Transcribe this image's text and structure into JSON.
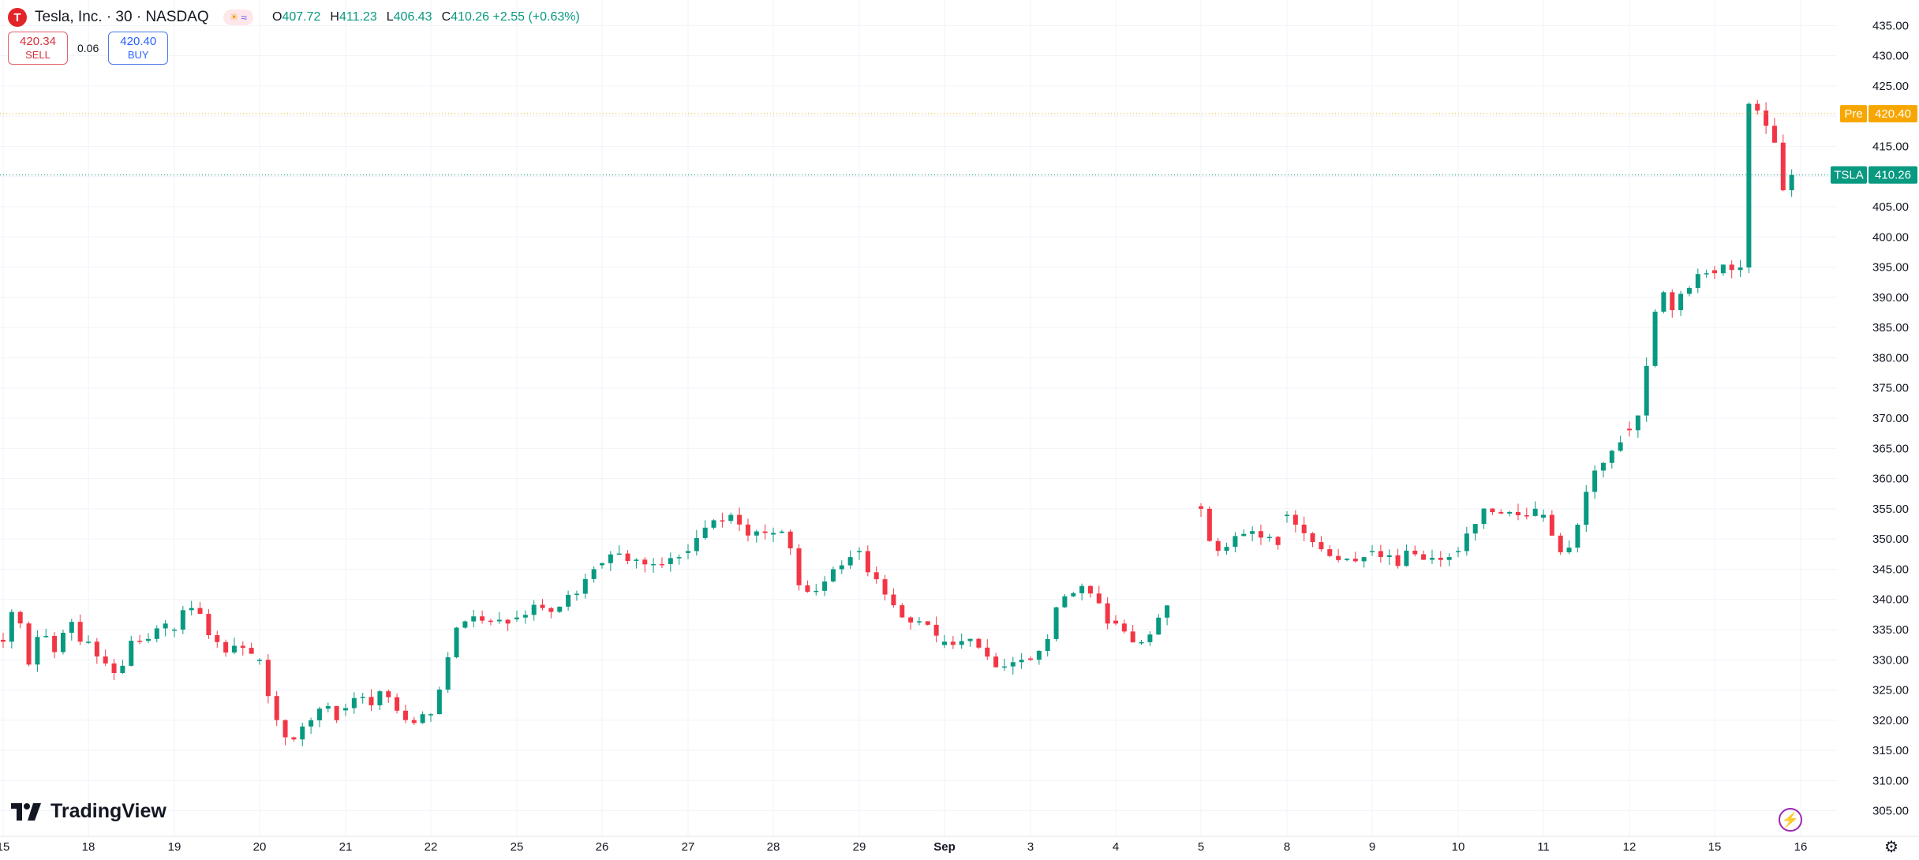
{
  "header": {
    "logo_letter": "T",
    "title": "Tesla, Inc. · 30 · NASDAQ",
    "pill_icons": [
      "sun-icon",
      "wave-icon"
    ],
    "ohlc": [
      {
        "key": "O",
        "value": "407.72"
      },
      {
        "key": "H",
        "value": "411.23"
      },
      {
        "key": "L",
        "value": "406.43"
      },
      {
        "key": "C",
        "value": "410.26 +2.55 (+0.63%)"
      }
    ]
  },
  "trade": {
    "sell": {
      "price": "420.34",
      "label": "SELL"
    },
    "spread": "0.06",
    "buy": {
      "price": "420.40",
      "label": "BUY"
    }
  },
  "brand": {
    "name": "TradingView"
  },
  "colors": {
    "up": "#089981",
    "down": "#f23645",
    "pre": "#f7a600",
    "grid": "#f0f3fa",
    "axis_text": "#131722"
  },
  "chart_data": {
    "type": "candlestick",
    "symbol": "TSLA",
    "interval": "30",
    "y_ticks": [
      305,
      310,
      315,
      320,
      325,
      330,
      335,
      340,
      345,
      350,
      355,
      360,
      365,
      370,
      375,
      380,
      385,
      390,
      395,
      400,
      405,
      410,
      415,
      420,
      425,
      430,
      435
    ],
    "y_tick_labels": [
      "305.00",
      "310.00",
      "315.00",
      "320.00",
      "325.00",
      "330.00",
      "335.00",
      "340.00",
      "345.00",
      "350.00",
      "355.00",
      "360.00",
      "365.00",
      "370.00",
      "375.00",
      "380.00",
      "385.00",
      "390.00",
      "395.00",
      "400.00",
      "405.00",
      "410.00",
      "415.00",
      "420.00",
      "425.00",
      "430.00",
      "435.00"
    ],
    "ylim": [
      303,
      437
    ],
    "x_labels": [
      "15",
      "18",
      "19",
      "20",
      "21",
      "22",
      "25",
      "26",
      "27",
      "28",
      "29",
      "Sep",
      "3",
      "4",
      "5",
      "8",
      "9",
      "10",
      "11",
      "12",
      "15",
      "16"
    ],
    "markers": [
      {
        "label": "Pre",
        "value": "420.40",
        "price": 420.4,
        "color": "#f7a600"
      },
      {
        "label": "TSLA",
        "value": "410.26",
        "price": 410.26,
        "color": "#089981"
      }
    ],
    "days": [
      {
        "label": "15",
        "path": [
          333,
          340,
          329,
          335,
          331,
          337,
          333
        ]
      },
      {
        "label": "18",
        "path": [
          333,
          330,
          328,
          329,
          334,
          333,
          334,
          336
        ]
      },
      {
        "label": "19",
        "path": [
          335,
          340,
          338,
          333,
          332,
          333,
          331
        ]
      },
      {
        "label": "20",
        "path": [
          330,
          322,
          318,
          316,
          319,
          321,
          322,
          320
        ]
      },
      {
        "label": "21",
        "path": [
          322,
          324,
          322,
          325,
          321,
          320,
          321
        ]
      },
      {
        "label": "22",
        "path": [
          321,
          327,
          335,
          337,
          336,
          337,
          336
        ]
      },
      {
        "label": "25",
        "path": [
          337,
          338,
          339,
          338,
          340,
          342,
          345
        ]
      },
      {
        "label": "26",
        "path": [
          346,
          348,
          347,
          346,
          345,
          346,
          346,
          347
        ]
      },
      {
        "label": "27",
        "path": [
          348,
          351,
          353,
          354,
          352,
          351,
          351
        ]
      },
      {
        "label": "28",
        "path": [
          351,
          352,
          343,
          341,
          343,
          346,
          347
        ]
      },
      {
        "label": "29",
        "path": [
          348,
          343,
          339,
          337,
          336,
          334
        ]
      },
      {
        "label": "Sep",
        "path": [
          333,
          332,
          333,
          331,
          328,
          329,
          330
        ]
      },
      {
        "label": "3",
        "path": [
          330,
          333,
          341,
          342,
          341,
          336
        ]
      },
      {
        "label": "4",
        "path": [
          336,
          335,
          334,
          333,
          334,
          335,
          337,
          339
        ]
      },
      {
        "label": "5",
        "path": [
          355,
          348,
          348,
          351,
          352,
          350,
          349
        ]
      },
      {
        "label": "8",
        "path": [
          354,
          352,
          349,
          348,
          346,
          346,
          347
        ]
      },
      {
        "label": "9",
        "path": [
          348,
          347,
          346,
          348,
          347,
          347,
          347
        ]
      },
      {
        "label": "10",
        "path": [
          348,
          353,
          355,
          355,
          354,
          355
        ]
      },
      {
        "label": "11",
        "path": [
          354,
          349,
          347,
          352,
          358,
          362,
          364,
          366
        ]
      },
      {
        "label": "12",
        "path": [
          368,
          371,
          385,
          391,
          388,
          391,
          393,
          394
        ]
      },
      {
        "label": "15",
        "path": [
          394,
          395,
          396,
          395,
          394,
          396,
          422,
          419,
          421,
          419,
          418,
          416,
          407,
          408,
          410.26
        ]
      },
      {
        "label": "16",
        "path": []
      }
    ]
  }
}
